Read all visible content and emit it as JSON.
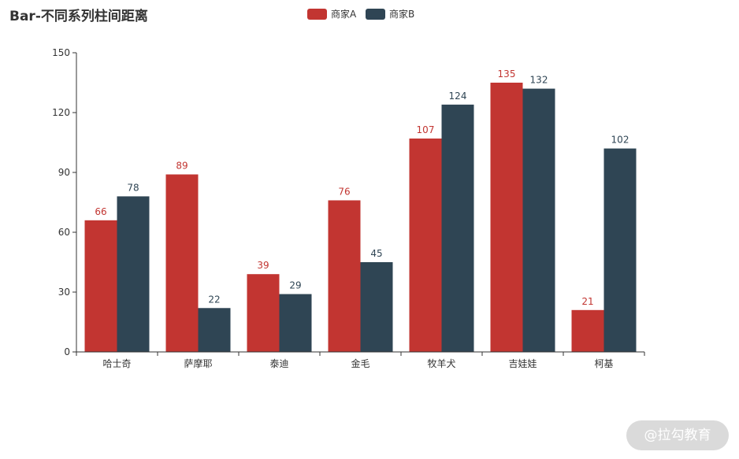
{
  "chart_data": {
    "type": "bar",
    "title": "Bar-不同系列柱间距离",
    "categories": [
      "哈士奇",
      "萨摩耶",
      "泰迪",
      "金毛",
      "牧羊犬",
      "吉娃娃",
      "柯基"
    ],
    "series": [
      {
        "name": "商家A",
        "color": "#c23531",
        "values": [
          66,
          89,
          39,
          76,
          107,
          135,
          21
        ]
      },
      {
        "name": "商家B",
        "color": "#2f4554",
        "values": [
          78,
          22,
          29,
          45,
          124,
          132,
          102
        ]
      }
    ],
    "ylim": [
      0,
      150
    ],
    "yticks": [
      0,
      30,
      60,
      90,
      120,
      150
    ],
    "xlabel": "",
    "ylabel": "",
    "legend_position": "top-center",
    "grid": false,
    "data_labels": true
  },
  "watermark": {
    "text": "@拉勾教育"
  }
}
